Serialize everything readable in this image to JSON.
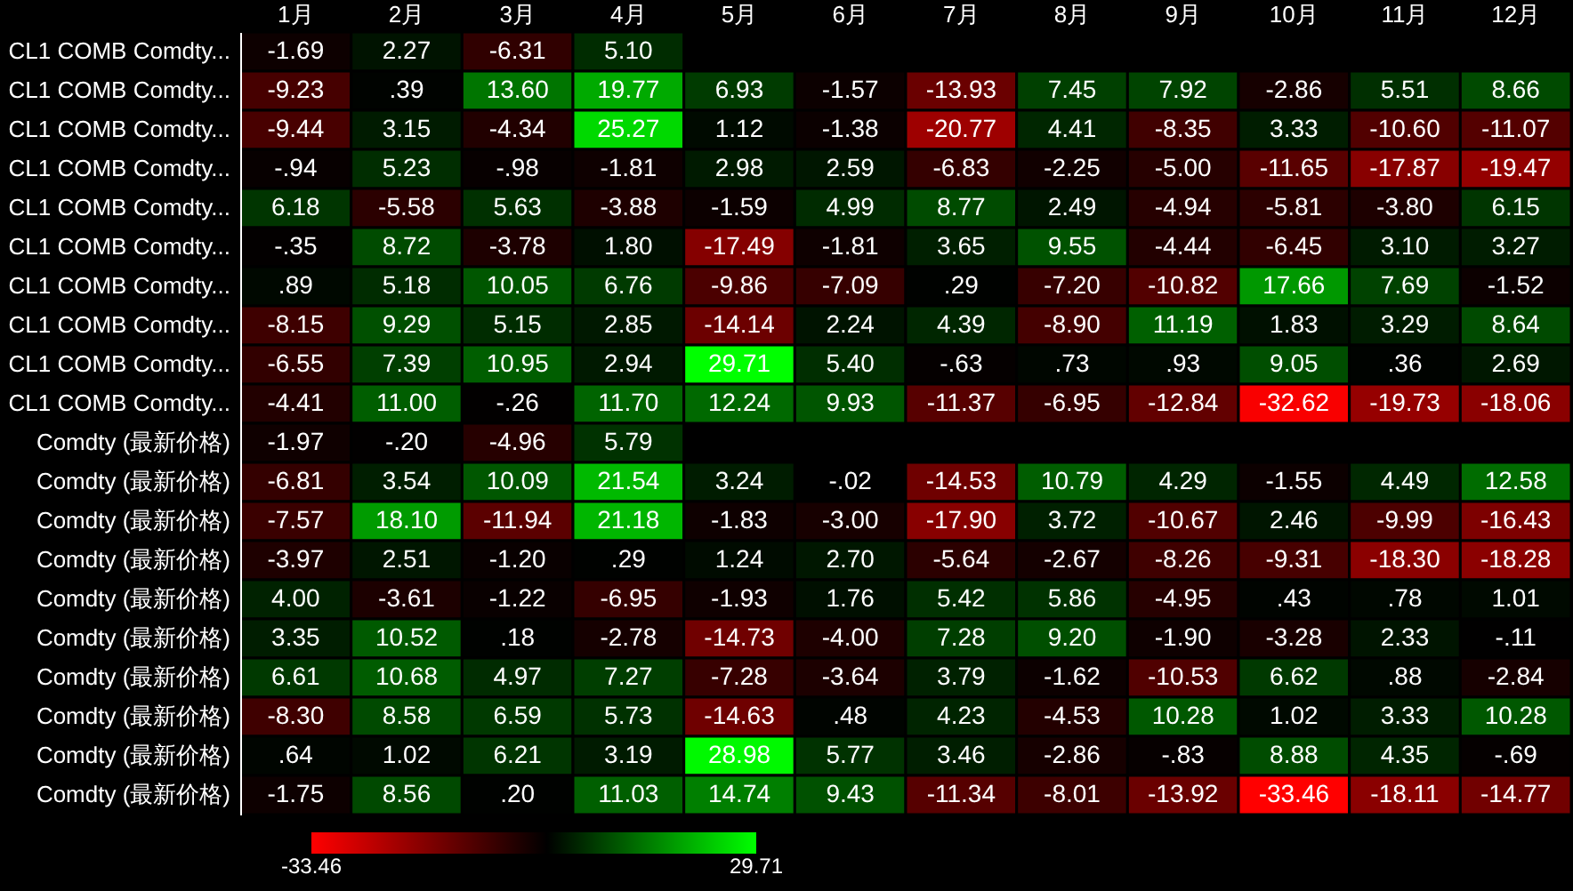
{
  "chart_data": {
    "type": "heatmap",
    "categories": [
      "1月",
      "2月",
      "3月",
      "4月",
      "5月",
      "6月",
      "7月",
      "8月",
      "9月",
      "10月",
      "11月",
      "12月"
    ],
    "y_categories": [
      "CL1 COMB Comdty...",
      "CL1 COMB Comdty...",
      "CL1 COMB Comdty...",
      "CL1 COMB Comdty...",
      "CL1 COMB Comdty...",
      "CL1 COMB Comdty...",
      "CL1 COMB Comdty...",
      "CL1 COMB Comdty...",
      "CL1 COMB Comdty...",
      "CL1 COMB Comdty...",
      "Comdty (最新价格)",
      "Comdty (最新价格)",
      "Comdty (最新价格)",
      "Comdty (最新价格)",
      "Comdty (最新价格)",
      "Comdty (最新价格)",
      "Comdty (最新价格)",
      "Comdty (最新价格)",
      "Comdty (最新价格)",
      "Comdty (最新价格)"
    ],
    "cells": [
      [
        -1.69,
        2.27,
        -6.31,
        5.1,
        null,
        null,
        null,
        null,
        null,
        null,
        null,
        null
      ],
      [
        -9.23,
        0.39,
        13.6,
        19.77,
        6.93,
        -1.57,
        -13.93,
        7.45,
        7.92,
        -2.86,
        5.51,
        8.66
      ],
      [
        -9.44,
        3.15,
        -4.34,
        25.27,
        1.12,
        -1.38,
        -20.77,
        4.41,
        -8.35,
        3.33,
        -10.6,
        -11.07
      ],
      [
        -0.94,
        5.23,
        -0.98,
        -1.81,
        2.98,
        2.59,
        -6.83,
        -2.25,
        -5.0,
        -11.65,
        -17.87,
        -19.47
      ],
      [
        6.18,
        -5.58,
        5.63,
        -3.88,
        -1.59,
        4.99,
        8.77,
        2.49,
        -4.94,
        -5.81,
        -3.8,
        6.15
      ],
      [
        -0.35,
        8.72,
        -3.78,
        1.8,
        -17.49,
        -1.81,
        3.65,
        9.55,
        -4.44,
        -6.45,
        3.1,
        3.27
      ],
      [
        0.89,
        5.18,
        10.05,
        6.76,
        -9.86,
        -7.09,
        0.29,
        -7.2,
        -10.82,
        17.66,
        7.69,
        -1.52
      ],
      [
        -8.15,
        9.29,
        5.15,
        2.85,
        -14.14,
        2.24,
        4.39,
        -8.9,
        11.19,
        1.83,
        3.29,
        8.64
      ],
      [
        -6.55,
        7.39,
        10.95,
        2.94,
        29.71,
        5.4,
        -0.63,
        0.73,
        0.93,
        9.05,
        0.36,
        2.69
      ],
      [
        -4.41,
        11.0,
        -0.26,
        11.7,
        12.24,
        9.93,
        -11.37,
        -6.95,
        -12.84,
        -32.62,
        -19.73,
        -18.06
      ],
      [
        -1.97,
        -0.2,
        -4.96,
        5.79,
        null,
        null,
        null,
        null,
        null,
        null,
        null,
        null
      ],
      [
        -6.81,
        3.54,
        10.09,
        21.54,
        3.24,
        -0.02,
        -14.53,
        10.79,
        4.29,
        -1.55,
        4.49,
        12.58
      ],
      [
        -7.57,
        18.1,
        -11.94,
        21.18,
        -1.83,
        -3.0,
        -17.9,
        3.72,
        -10.67,
        2.46,
        -9.99,
        -16.43
      ],
      [
        -3.97,
        2.51,
        -1.2,
        0.29,
        1.24,
        2.7,
        -5.64,
        -2.67,
        -8.26,
        -9.31,
        -18.3,
        -18.28
      ],
      [
        4.0,
        -3.61,
        -1.22,
        -6.95,
        -1.93,
        1.76,
        5.42,
        5.86,
        -4.95,
        0.43,
        0.78,
        1.01
      ],
      [
        3.35,
        10.52,
        0.18,
        -2.78,
        -14.73,
        -4.0,
        7.28,
        9.2,
        -1.9,
        -3.28,
        2.33,
        -0.11
      ],
      [
        6.61,
        10.68,
        4.97,
        7.27,
        -7.28,
        -3.64,
        3.79,
        -1.62,
        -10.53,
        6.62,
        0.88,
        -2.84
      ],
      [
        -8.3,
        8.58,
        6.59,
        5.73,
        -14.63,
        0.48,
        4.23,
        -4.53,
        10.28,
        1.02,
        3.33,
        10.28
      ],
      [
        0.64,
        1.02,
        6.21,
        3.19,
        28.98,
        5.77,
        3.46,
        -2.86,
        -0.83,
        8.88,
        4.35,
        -0.69
      ],
      [
        -1.75,
        8.56,
        0.2,
        11.03,
        14.74,
        9.43,
        -11.34,
        -8.01,
        -13.92,
        -33.46,
        -18.11,
        -14.77
      ]
    ],
    "cell_labels": [
      [
        "-1.69",
        "2.27",
        "-6.31",
        "5.10",
        null,
        null,
        null,
        null,
        null,
        null,
        null,
        null
      ],
      [
        "-9.23",
        ".39",
        "13.60",
        "19.77",
        "6.93",
        "-1.57",
        "-13.93",
        "7.45",
        "7.92",
        "-2.86",
        "5.51",
        "8.66"
      ],
      [
        "-9.44",
        "3.15",
        "-4.34",
        "25.27",
        "1.12",
        "-1.38",
        "-20.77",
        "4.41",
        "-8.35",
        "3.33",
        "-10.60",
        "-11.07"
      ],
      [
        "-.94",
        "5.23",
        "-.98",
        "-1.81",
        "2.98",
        "2.59",
        "-6.83",
        "-2.25",
        "-5.00",
        "-11.65",
        "-17.87",
        "-19.47"
      ],
      [
        "6.18",
        "-5.58",
        "5.63",
        "-3.88",
        "-1.59",
        "4.99",
        "8.77",
        "2.49",
        "-4.94",
        "-5.81",
        "-3.80",
        "6.15"
      ],
      [
        "-.35",
        "8.72",
        "-3.78",
        "1.80",
        "-17.49",
        "-1.81",
        "3.65",
        "9.55",
        "-4.44",
        "-6.45",
        "3.10",
        "3.27"
      ],
      [
        ".89",
        "5.18",
        "10.05",
        "6.76",
        "-9.86",
        "-7.09",
        ".29",
        "-7.20",
        "-10.82",
        "17.66",
        "7.69",
        "-1.52"
      ],
      [
        "-8.15",
        "9.29",
        "5.15",
        "2.85",
        "-14.14",
        "2.24",
        "4.39",
        "-8.90",
        "11.19",
        "1.83",
        "3.29",
        "8.64"
      ],
      [
        "-6.55",
        "7.39",
        "10.95",
        "2.94",
        "29.71",
        "5.40",
        "-.63",
        ".73",
        ".93",
        "9.05",
        ".36",
        "2.69"
      ],
      [
        "-4.41",
        "11.00",
        "-.26",
        "11.70",
        "12.24",
        "9.93",
        "-11.37",
        "-6.95",
        "-12.84",
        "-32.62",
        "-19.73",
        "-18.06"
      ],
      [
        "-1.97",
        "-.20",
        "-4.96",
        "5.79",
        null,
        null,
        null,
        null,
        null,
        null,
        null,
        null
      ],
      [
        "-6.81",
        "3.54",
        "10.09",
        "21.54",
        "3.24",
        "-.02",
        "-14.53",
        "10.79",
        "4.29",
        "-1.55",
        "4.49",
        "12.58"
      ],
      [
        "-7.57",
        "18.10",
        "-11.94",
        "21.18",
        "-1.83",
        "-3.00",
        "-17.90",
        "3.72",
        "-10.67",
        "2.46",
        "-9.99",
        "-16.43"
      ],
      [
        "-3.97",
        "2.51",
        "-1.20",
        ".29",
        "1.24",
        "2.70",
        "-5.64",
        "-2.67",
        "-8.26",
        "-9.31",
        "-18.30",
        "-18.28"
      ],
      [
        "4.00",
        "-3.61",
        "-1.22",
        "-6.95",
        "-1.93",
        "1.76",
        "5.42",
        "5.86",
        "-4.95",
        ".43",
        ".78",
        "1.01"
      ],
      [
        "3.35",
        "10.52",
        ".18",
        "-2.78",
        "-14.73",
        "-4.00",
        "7.28",
        "9.20",
        "-1.90",
        "-3.28",
        "2.33",
        "-.11"
      ],
      [
        "6.61",
        "10.68",
        "4.97",
        "7.27",
        "-7.28",
        "-3.64",
        "3.79",
        "-1.62",
        "-10.53",
        "6.62",
        ".88",
        "-2.84"
      ],
      [
        "-8.30",
        "8.58",
        "6.59",
        "5.73",
        "-14.63",
        ".48",
        "4.23",
        "-4.53",
        "10.28",
        "1.02",
        "3.33",
        "10.28"
      ],
      [
        ".64",
        "1.02",
        "6.21",
        "3.19",
        "28.98",
        "5.77",
        "3.46",
        "-2.86",
        "-.83",
        "8.88",
        "4.35",
        "-.69"
      ],
      [
        "-1.75",
        "8.56",
        ".20",
        "11.03",
        "14.74",
        "9.43",
        "-11.34",
        "-8.01",
        "-13.92",
        "-33.46",
        "-18.11",
        "-14.77"
      ]
    ],
    "clim": [
      -33.46,
      29.71
    ],
    "cticks": [
      -33.46,
      29.71
    ],
    "data_labels": true
  }
}
